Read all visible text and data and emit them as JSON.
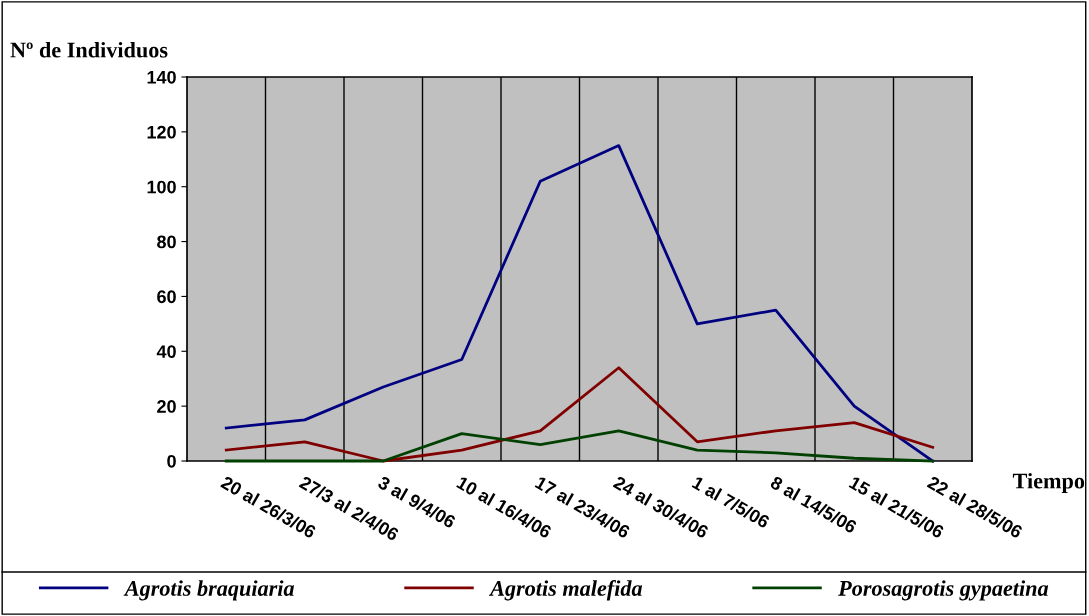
{
  "chart_data": {
    "type": "line",
    "ylabel": "Nº de Individuos",
    "xlabel": "Tiempo",
    "categories": [
      "20 al 26/3/06",
      "27/3 al 2/4/06",
      "3 al 9/4/06",
      "10 al 16/4/06",
      "17 al 23/4/06",
      "24 al 30/4/06",
      "1 al 7/5/06",
      "8 al 14/5/06",
      "15 al 21/5/06",
      "22 al 28/5/06"
    ],
    "series": [
      {
        "name": "Agrotis braquiaria",
        "color": "#000080",
        "values": [
          12,
          15,
          27,
          37,
          102,
          115,
          50,
          55,
          20,
          0
        ]
      },
      {
        "name": "Agrotis malefida",
        "color": "#800000",
        "values": [
          4,
          7,
          0,
          4,
          11,
          34,
          7,
          11,
          14,
          5
        ]
      },
      {
        "name": "Porosagrotis gypaetina",
        "color": "#004000",
        "values": [
          0,
          0,
          0,
          10,
          6,
          11,
          4,
          3,
          1,
          0
        ]
      }
    ],
    "ylim": [
      0,
      140
    ],
    "yticks": [
      0,
      20,
      40,
      60,
      80,
      100,
      120,
      140
    ],
    "grid": "x",
    "legend": "bottom",
    "marker": "none",
    "line_style": "solid"
  }
}
